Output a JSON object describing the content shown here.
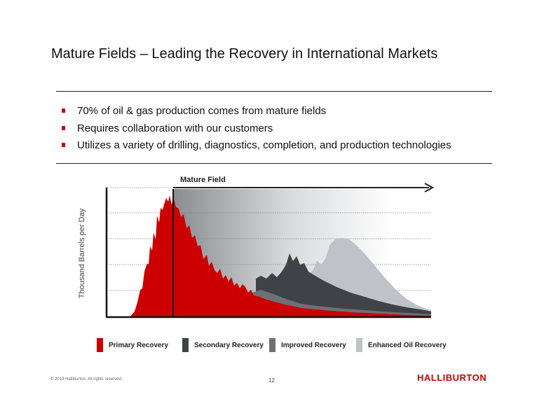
{
  "slide": {
    "title": "Mature Fields – Leading the Recovery in International Markets",
    "bullets": [
      "70% of oil & gas production comes from mature fields",
      "Requires collaboration with our customers",
      "Utilizes a variety of drilling, diagnostics, completion, and production technologies"
    ],
    "copyright": "© 2019 Halliburton. All rights reserved.",
    "page_number": "12",
    "logo_text": "HALLIBURTON"
  },
  "chart_data": {
    "type": "area",
    "title": "",
    "ylabel": "Thousand Barrels per Day",
    "xlabel": "",
    "annotation": "Mature Field",
    "grid": true,
    "legend_position": "bottom",
    "series": [
      {
        "name": "Primary Recovery",
        "color": "#cc0000"
      },
      {
        "name": "Secondary Recovery",
        "color": "#3f4246"
      },
      {
        "name": "Improved Recovery",
        "color": "#6d7075"
      },
      {
        "name": "Enhanced Oil Recovery",
        "color": "#bfc2c6"
      }
    ]
  }
}
